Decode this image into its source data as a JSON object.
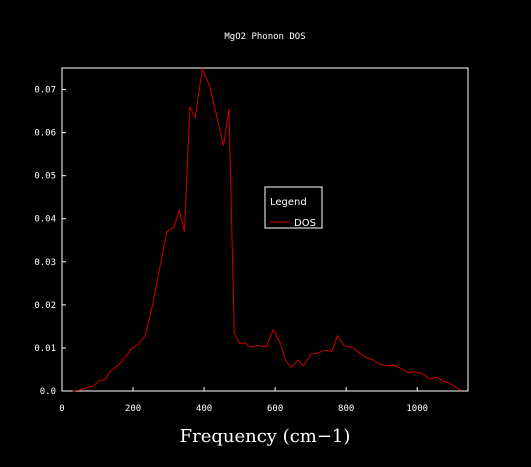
{
  "chart_data": {
    "type": "line",
    "title": "MgO2 Phonon DOS",
    "xlabel": "Frequency (cm−1)",
    "ylabel": "",
    "xlim": [
      0,
      1143
    ],
    "ylim": [
      0,
      0.075
    ],
    "xticks": [
      0,
      200,
      400,
      600,
      800,
      1000
    ],
    "yticks": [
      0.0,
      0.01,
      0.02,
      0.03,
      0.04,
      0.05,
      0.06,
      0.07
    ],
    "xtick_labels": [
      "0",
      "200",
      "400",
      "600",
      "800",
      "1000"
    ],
    "ytick_labels": [
      "0.0",
      "0.01",
      "0.02",
      "0.03",
      "0.04",
      "0.05",
      "0.06",
      "0.07"
    ],
    "grid": false,
    "legend": {
      "title": "Legend",
      "placement": "center-right"
    },
    "series": [
      {
        "name": "DOS",
        "color": "#cc0000",
        "points": [
          [
            30,
            0.0
          ],
          [
            50,
            0.0002
          ],
          [
            70,
            0.0008
          ],
          [
            90,
            0.0012
          ],
          [
            105,
            0.0025
          ],
          [
            120,
            0.0025
          ],
          [
            135,
            0.0045
          ],
          [
            155,
            0.0058
          ],
          [
            175,
            0.0075
          ],
          [
            195,
            0.0098
          ],
          [
            215,
            0.0108
          ],
          [
            235,
            0.013
          ],
          [
            255,
            0.02
          ],
          [
            275,
            0.0285
          ],
          [
            295,
            0.037
          ],
          [
            315,
            0.038
          ],
          [
            330,
            0.042
          ],
          [
            345,
            0.037
          ],
          [
            360,
            0.066
          ],
          [
            375,
            0.0635
          ],
          [
            395,
            0.0748
          ],
          [
            415,
            0.071
          ],
          [
            435,
            0.064
          ],
          [
            455,
            0.057
          ],
          [
            470,
            0.0655
          ],
          [
            485,
            0.0135
          ],
          [
            500,
            0.011
          ],
          [
            515,
            0.0112
          ],
          [
            530,
            0.0102
          ],
          [
            545,
            0.0105
          ],
          [
            560,
            0.0105
          ],
          [
            575,
            0.0102
          ],
          [
            595,
            0.0142
          ],
          [
            615,
            0.011
          ],
          [
            630,
            0.007
          ],
          [
            645,
            0.0055
          ],
          [
            665,
            0.0072
          ],
          [
            680,
            0.0058
          ],
          [
            700,
            0.0085
          ],
          [
            720,
            0.0088
          ],
          [
            740,
            0.0095
          ],
          [
            760,
            0.0092
          ],
          [
            775,
            0.0128
          ],
          [
            795,
            0.0105
          ],
          [
            815,
            0.0102
          ],
          [
            835,
            0.009
          ],
          [
            855,
            0.0078
          ],
          [
            875,
            0.0072
          ],
          [
            895,
            0.0062
          ],
          [
            915,
            0.0058
          ],
          [
            935,
            0.006
          ],
          [
            955,
            0.0052
          ],
          [
            975,
            0.0042
          ],
          [
            995,
            0.0045
          ],
          [
            1015,
            0.004
          ],
          [
            1035,
            0.0028
          ],
          [
            1055,
            0.0032
          ],
          [
            1075,
            0.0022
          ],
          [
            1090,
            0.0018
          ],
          [
            1110,
            0.0008
          ],
          [
            1125,
            0.0001
          ]
        ]
      }
    ]
  }
}
